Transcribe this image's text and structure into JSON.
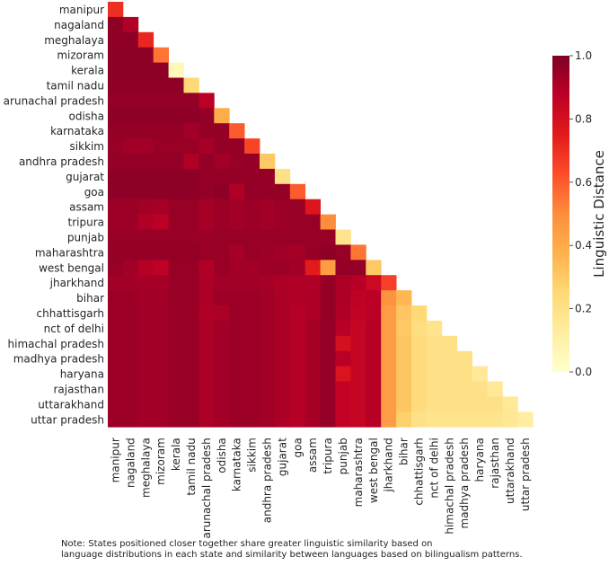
{
  "chart_data": {
    "type": "heatmap",
    "title": "",
    "xlabel": "",
    "ylabel": "",
    "categories": [
      "manipur",
      "nagaland",
      "meghalaya",
      "mizoram",
      "kerala",
      "tamil nadu",
      "arunachal pradesh",
      "odisha",
      "karnataka",
      "sikkim",
      "andhra pradesh",
      "gujarat",
      "goa",
      "assam",
      "tripura",
      "punjab",
      "maharashtra",
      "west bengal",
      "jharkhand",
      "bihar",
      "chhattisgarh",
      "nct of delhi",
      "himachal pradesh",
      "madhya pradesh",
      "haryana",
      "rajasthan",
      "uttarakhand",
      "uttar pradesh"
    ],
    "mask": "upper triangle (cells with column > row) hidden",
    "values": [
      [
        0.7
      ],
      [
        0.97,
        0.9
      ],
      [
        0.97,
        0.97,
        0.72
      ],
      [
        0.97,
        0.97,
        0.97,
        0.55
      ],
      [
        0.97,
        0.97,
        0.97,
        0.97,
        0.05
      ],
      [
        0.97,
        0.97,
        0.97,
        0.97,
        0.97,
        0.25
      ],
      [
        0.96,
        0.96,
        0.96,
        0.96,
        0.96,
        0.96,
        0.88
      ],
      [
        0.97,
        0.97,
        0.97,
        0.97,
        0.97,
        0.97,
        0.96,
        0.4
      ],
      [
        0.96,
        0.96,
        0.96,
        0.96,
        0.96,
        0.93,
        0.96,
        0.96,
        0.6
      ],
      [
        0.95,
        0.93,
        0.93,
        0.95,
        0.95,
        0.95,
        0.92,
        0.96,
        0.96,
        0.65
      ],
      [
        0.96,
        0.96,
        0.96,
        0.96,
        0.96,
        0.9,
        0.96,
        0.93,
        0.95,
        0.96,
        0.3
      ],
      [
        0.97,
        0.97,
        0.97,
        0.97,
        0.97,
        0.97,
        0.96,
        0.96,
        0.96,
        0.96,
        0.96,
        0.2
      ],
      [
        0.97,
        0.97,
        0.97,
        0.97,
        0.97,
        0.97,
        0.96,
        0.97,
        0.9,
        0.96,
        0.96,
        0.96,
        0.6
      ],
      [
        0.94,
        0.94,
        0.93,
        0.92,
        0.95,
        0.95,
        0.92,
        0.94,
        0.93,
        0.94,
        0.93,
        0.94,
        0.95,
        0.77
      ],
      [
        0.94,
        0.94,
        0.9,
        0.88,
        0.95,
        0.95,
        0.92,
        0.94,
        0.93,
        0.94,
        0.93,
        0.94,
        0.95,
        0.95,
        0.5
      ],
      [
        0.95,
        0.95,
        0.95,
        0.95,
        0.95,
        0.95,
        0.94,
        0.95,
        0.95,
        0.95,
        0.95,
        0.95,
        0.95,
        0.95,
        0.95,
        0.18
      ],
      [
        0.96,
        0.96,
        0.96,
        0.96,
        0.96,
        0.96,
        0.95,
        0.95,
        0.92,
        0.95,
        0.94,
        0.93,
        0.92,
        0.95,
        0.97,
        0.95,
        0.55
      ],
      [
        0.95,
        0.93,
        0.89,
        0.87,
        0.95,
        0.95,
        0.9,
        0.95,
        0.93,
        0.93,
        0.94,
        0.94,
        0.93,
        0.75,
        0.45,
        0.96,
        0.96,
        0.3
      ],
      [
        0.93,
        0.93,
        0.92,
        0.92,
        0.95,
        0.95,
        0.91,
        0.93,
        0.93,
        0.93,
        0.92,
        0.91,
        0.9,
        0.9,
        0.96,
        0.91,
        0.89,
        0.83,
        0.66
      ],
      [
        0.94,
        0.94,
        0.93,
        0.93,
        0.95,
        0.95,
        0.91,
        0.94,
        0.94,
        0.94,
        0.93,
        0.91,
        0.9,
        0.91,
        0.96,
        0.91,
        0.87,
        0.88,
        0.48,
        0.36
      ],
      [
        0.94,
        0.94,
        0.93,
        0.93,
        0.95,
        0.95,
        0.9,
        0.91,
        0.94,
        0.94,
        0.93,
        0.91,
        0.89,
        0.91,
        0.96,
        0.9,
        0.86,
        0.88,
        0.45,
        0.31,
        0.25
      ],
      [
        0.94,
        0.94,
        0.93,
        0.93,
        0.95,
        0.95,
        0.91,
        0.93,
        0.94,
        0.94,
        0.93,
        0.91,
        0.89,
        0.92,
        0.96,
        0.88,
        0.85,
        0.89,
        0.45,
        0.3,
        0.22,
        0.18
      ],
      [
        0.94,
        0.94,
        0.93,
        0.93,
        0.95,
        0.95,
        0.91,
        0.93,
        0.94,
        0.94,
        0.93,
        0.91,
        0.89,
        0.92,
        0.96,
        0.8,
        0.85,
        0.89,
        0.45,
        0.31,
        0.23,
        0.2,
        0.2
      ],
      [
        0.94,
        0.94,
        0.93,
        0.93,
        0.95,
        0.95,
        0.91,
        0.93,
        0.94,
        0.94,
        0.93,
        0.91,
        0.89,
        0.92,
        0.96,
        0.88,
        0.85,
        0.89,
        0.45,
        0.31,
        0.23,
        0.2,
        0.2,
        0.2
      ],
      [
        0.94,
        0.94,
        0.93,
        0.93,
        0.95,
        0.95,
        0.91,
        0.93,
        0.94,
        0.94,
        0.93,
        0.91,
        0.89,
        0.92,
        0.96,
        0.78,
        0.85,
        0.89,
        0.45,
        0.31,
        0.23,
        0.2,
        0.2,
        0.2,
        0.15
      ],
      [
        0.94,
        0.94,
        0.93,
        0.93,
        0.95,
        0.95,
        0.91,
        0.93,
        0.94,
        0.94,
        0.93,
        0.91,
        0.89,
        0.92,
        0.96,
        0.86,
        0.85,
        0.89,
        0.45,
        0.31,
        0.23,
        0.2,
        0.2,
        0.2,
        0.2,
        0.15
      ],
      [
        0.94,
        0.94,
        0.93,
        0.93,
        0.95,
        0.95,
        0.91,
        0.93,
        0.94,
        0.94,
        0.93,
        0.91,
        0.89,
        0.92,
        0.96,
        0.86,
        0.85,
        0.89,
        0.45,
        0.31,
        0.23,
        0.2,
        0.2,
        0.2,
        0.2,
        0.2,
        0.15
      ],
      [
        0.94,
        0.94,
        0.93,
        0.93,
        0.95,
        0.95,
        0.91,
        0.93,
        0.94,
        0.94,
        0.93,
        0.91,
        0.89,
        0.92,
        0.96,
        0.86,
        0.85,
        0.89,
        0.45,
        0.28,
        0.2,
        0.18,
        0.18,
        0.18,
        0.18,
        0.18,
        0.16,
        0.12
      ]
    ],
    "colorbar": {
      "label": "Linguistic Distance",
      "range": [
        0,
        1
      ],
      "ticks": [
        "0.0",
        "0.2",
        "0.4",
        "0.6",
        "0.8",
        "1.0"
      ],
      "colormap": "YlOrRd"
    },
    "grid": false
  },
  "note": {
    "line1": "Note: States positioned closer together share greater linguistic similarity based on",
    "line2": "language distributions in each state and similarity between languages based on bilingualism patterns."
  }
}
